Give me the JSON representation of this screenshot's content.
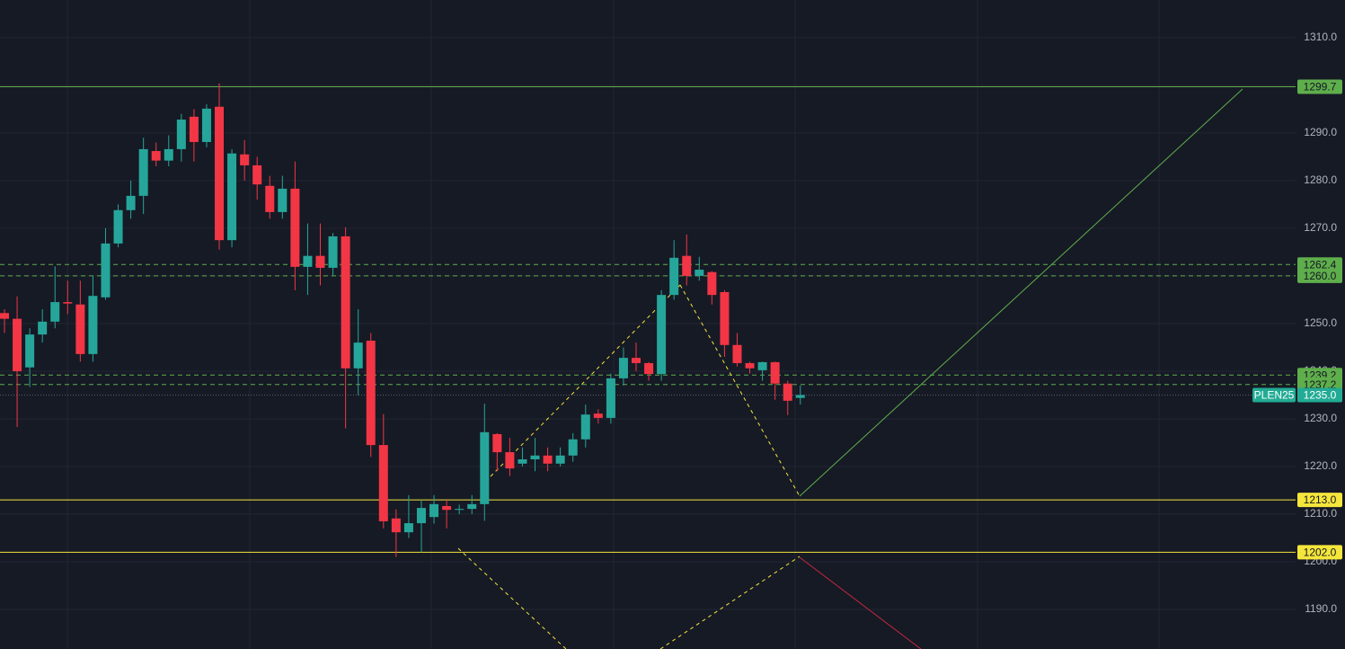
{
  "chart_data": {
    "type": "candlestick",
    "symbol": "PLEN25",
    "up_color": "#26a69a",
    "down_color": "#f23645",
    "grid": true,
    "ylim": [
      1181.7,
      1317.9
    ],
    "yticks": [
      {
        "value": 1190,
        "label": "1190.0"
      },
      {
        "value": 1200,
        "label": "1200.0"
      },
      {
        "value": 1210,
        "label": "1210.0"
      },
      {
        "value": 1220,
        "label": "1220.0"
      },
      {
        "value": 1230,
        "label": "1230.0"
      },
      {
        "value": 1240,
        "label": "1240.0"
      },
      {
        "value": 1250,
        "label": "1250.0"
      },
      {
        "value": 1260,
        "label": "1260.0"
      },
      {
        "value": 1270,
        "label": "1270.0"
      },
      {
        "value": 1280,
        "label": "1280.0"
      },
      {
        "value": 1290,
        "label": "1290.0"
      },
      {
        "value": 1300,
        "label": "1300.0"
      },
      {
        "value": 1310,
        "label": "1310.0"
      }
    ],
    "open": [
      1252.2,
      1251.0,
      1240.8,
      1247.7,
      1250.4,
      1254.5,
      1254.0,
      1243.6,
      1255.5,
      1266.8,
      1273.8,
      1276.8,
      1286.2,
      1284.2,
      1286.6,
      1293.4,
      1288.1,
      1295.5,
      1267.5,
      1285.5,
      1283.2,
      1278.9,
      1273.4,
      1278.3,
      1261.9,
      1264.2,
      1261.7,
      1268.3,
      1240.6,
      1246.4,
      1224.5,
      1209.1,
      1206.2,
      1208.1,
      1209.4,
      1211.7,
      1210.9,
      1211.1,
      1212.1,
      1226.8,
      1223.0,
      1220.6,
      1221.5,
      1222.3,
      1220.6,
      1222.3,
      1225.7,
      1231.1,
      1230.2,
      1238.5,
      1242.8,
      1241.7,
      1239.4,
      1256.0,
      1264.2,
      1260.0,
      1260.8,
      1256.6,
      1245.5,
      1241.7,
      1240.2,
      1241.9,
      1237.4,
      1234.4
    ],
    "high": [
      1253.0,
      1255.7,
      1249.0,
      1253.0,
      1262.0,
      1259.0,
      1259.0,
      1260.0,
      1270.0,
      1275.0,
      1280.0,
      1289.0,
      1288.0,
      1289.5,
      1294.0,
      1295.0,
      1296.0,
      1300.4,
      1286.6,
      1288.5,
      1285.0,
      1281.0,
      1281.0,
      1284.0,
      1271.0,
      1271.0,
      1269.0,
      1270.2,
      1253.0,
      1248.0,
      1231.0,
      1211.0,
      1214.0,
      1213.0,
      1214.0,
      1213.0,
      1212.0,
      1214.0,
      1233.2,
      1227.0,
      1226.0,
      1224.0,
      1226.0,
      1224.0,
      1224.0,
      1227.0,
      1233.0,
      1232.0,
      1239.5,
      1245.0,
      1246.0,
      1241.9,
      1257.0,
      1267.5,
      1268.7,
      1264.0,
      1261.0,
      1257.0,
      1248.0,
      1242.0,
      1242.0,
      1242.0,
      1238.0,
      1237.0
    ],
    "low": [
      1248.0,
      1228.3,
      1236.7,
      1246.0,
      1249.0,
      1252.0,
      1242.0,
      1242.0,
      1255.0,
      1266.0,
      1272.0,
      1273.0,
      1283.0,
      1283.0,
      1284.0,
      1284.0,
      1287.0,
      1265.5,
      1266.0,
      1280.0,
      1276.0,
      1272.0,
      1272.0,
      1257.0,
      1256.0,
      1258.0,
      1260.0,
      1228.0,
      1235.0,
      1222.0,
      1207.0,
      1201.0,
      1205.0,
      1202.0,
      1208.0,
      1207.0,
      1210.0,
      1210.0,
      1208.6,
      1219.0,
      1218.0,
      1220.0,
      1219.0,
      1219.0,
      1220.0,
      1221.0,
      1224.0,
      1229.0,
      1229.0,
      1237.0,
      1240.0,
      1238.0,
      1238.0,
      1255.0,
      1258.0,
      1259.0,
      1254.0,
      1243.0,
      1241.0,
      1239.5,
      1238.0,
      1234.0,
      1230.8,
      1233.0
    ],
    "close": [
      1251.0,
      1240.0,
      1247.7,
      1250.4,
      1254.5,
      1254.2,
      1243.6,
      1255.8,
      1266.8,
      1273.8,
      1276.8,
      1286.6,
      1284.2,
      1286.6,
      1292.8,
      1288.1,
      1295.1,
      1267.5,
      1285.7,
      1283.2,
      1279.2,
      1273.4,
      1278.3,
      1261.9,
      1264.2,
      1261.7,
      1268.3,
      1240.6,
      1246.0,
      1224.5,
      1208.5,
      1206.2,
      1208.1,
      1211.3,
      1212.1,
      1210.9,
      1211.1,
      1212.1,
      1227.2,
      1223.0,
      1219.6,
      1221.5,
      1222.3,
      1220.6,
      1222.3,
      1225.7,
      1230.9,
      1230.2,
      1238.5,
      1242.8,
      1241.7,
      1239.4,
      1256.0,
      1263.8,
      1260.0,
      1261.3,
      1256.0,
      1245.5,
      1241.7,
      1240.6,
      1241.9,
      1237.4,
      1233.8,
      1235.0
    ],
    "levels": [
      {
        "price": 1299.7,
        "label": "1299.7",
        "color": "#5fae4c",
        "style": "solid"
      },
      {
        "price": 1262.4,
        "label": "1262.4",
        "color": "#5fae4c",
        "style": "dashed"
      },
      {
        "price": 1260.0,
        "label": "1260.0",
        "color": "#5fae4c",
        "style": "dashed"
      },
      {
        "price": 1239.2,
        "label": "1239.2",
        "color": "#5fae4c",
        "style": "dashed"
      },
      {
        "price": 1237.2,
        "label": "1237.2",
        "color": "#5fae4c",
        "style": "dashed"
      },
      {
        "price": 1235.0,
        "label": "1235.0",
        "color": "#22ab94",
        "style": "dotted"
      },
      {
        "price": 1213.0,
        "label": "1213.0",
        "color": "#f5e63c",
        "style": "solid"
      },
      {
        "price": 1202.0,
        "label": "1202.0",
        "color": "#f5e63c",
        "style": "solid"
      }
    ]
  }
}
